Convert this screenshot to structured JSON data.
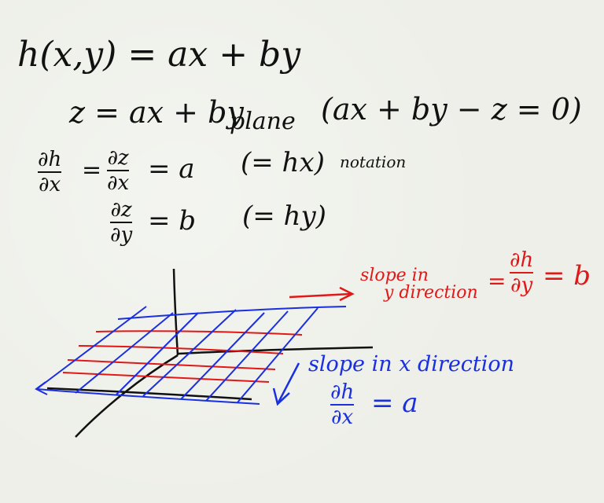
{
  "whiteboard": {
    "eq1": "h(x,y) = ax + by",
    "eq2": "z = ax + by",
    "plane_word": "plane",
    "plane_eq": "(ax + by − z = 0)",
    "dh": "∂h",
    "dx": "∂x",
    "dz": "∂z",
    "dy": "∂y",
    "eq_a": "= a",
    "eq_b": "= b",
    "hx_note": "(= hx)",
    "notation": "notation",
    "hy_note": "(= hy)",
    "slope_y_1": "slope in",
    "slope_y_2": "y direction",
    "eq_sign": "=",
    "eq_b_red": "= b",
    "slope_x": "slope in x direction",
    "eq_a_blue": "= a"
  },
  "colors": {
    "ink": "#111111",
    "red": "#e01818",
    "blue": "#1a2fe0",
    "board": "#edefe8"
  }
}
